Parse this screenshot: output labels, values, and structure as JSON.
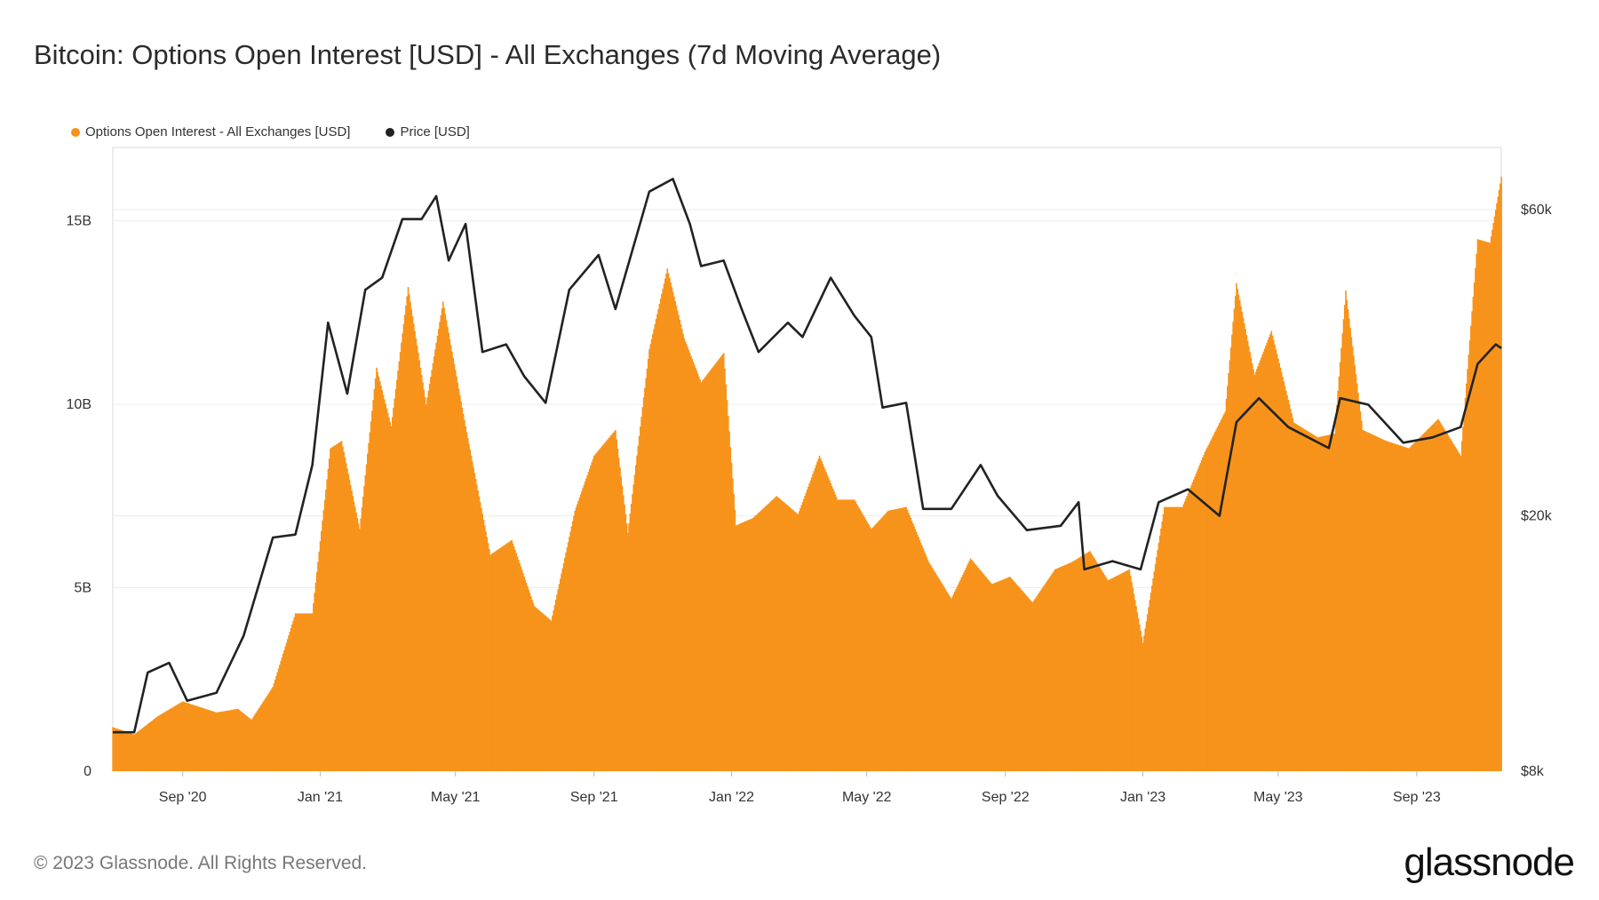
{
  "title": "Bitcoin: Options Open Interest [USD] - All Exchanges (7d Moving Average)",
  "legend": {
    "oi_label": "Options Open Interest - All Exchanges [USD]",
    "price_label": "Price [USD]"
  },
  "footer": "© 2023 Glassnode. All Rights Reserved.",
  "brand": "glassnode",
  "colors": {
    "oi": "#f7931a",
    "price": "#222222",
    "grid": "#ececec",
    "axis": "#d8d8d8"
  },
  "chart_data": {
    "type": "bar+line",
    "title": "Bitcoin: Options Open Interest [USD] - All Exchanges (7d Moving Average)",
    "x_range": [
      "2020-07-01",
      "2023-11-15"
    ],
    "x_ticks": [
      {
        "date": "2020-09-01",
        "label": "Sep '20"
      },
      {
        "date": "2021-01-01",
        "label": "Jan '21"
      },
      {
        "date": "2021-05-01",
        "label": "May '21"
      },
      {
        "date": "2021-09-01",
        "label": "Sep '21"
      },
      {
        "date": "2022-01-01",
        "label": "Jan '22"
      },
      {
        "date": "2022-05-01",
        "label": "May '22"
      },
      {
        "date": "2022-09-01",
        "label": "Sep '22"
      },
      {
        "date": "2023-01-01",
        "label": "Jan '23"
      },
      {
        "date": "2023-05-01",
        "label": "May '23"
      },
      {
        "date": "2023-09-01",
        "label": "Sep '23"
      }
    ],
    "y_left": {
      "min": 0,
      "max": 17,
      "unit": "B USD",
      "ticks": [
        {
          "value": 0,
          "label": "0"
        },
        {
          "value": 5,
          "label": "5B"
        },
        {
          "value": 10,
          "label": "10B"
        },
        {
          "value": 15,
          "label": "15B"
        }
      ]
    },
    "y_right": {
      "scale": "log",
      "min": 8000,
      "max": 75000,
      "ticks": [
        {
          "value": 8000,
          "label": "$8k"
        },
        {
          "value": 20000,
          "label": "$20k"
        },
        {
          "value": 60000,
          "label": "$60k"
        }
      ]
    },
    "series": [
      {
        "name": "Options Open Interest - All Exchanges [USD]",
        "kind": "bar",
        "axis": "left",
        "points": [
          [
            "2020-07-01",
            1.2
          ],
          [
            "2020-07-20",
            1.0
          ],
          [
            "2020-08-10",
            1.5
          ],
          [
            "2020-09-01",
            1.9
          ],
          [
            "2020-10-01",
            1.6
          ],
          [
            "2020-10-20",
            1.7
          ],
          [
            "2020-11-01",
            1.4
          ],
          [
            "2020-11-20",
            2.3
          ],
          [
            "2020-12-10",
            4.3
          ],
          [
            "2020-12-25",
            4.3
          ],
          [
            "2021-01-10",
            8.8
          ],
          [
            "2021-01-20",
            9.0
          ],
          [
            "2021-02-05",
            6.6
          ],
          [
            "2021-02-20",
            11.0
          ],
          [
            "2021-03-05",
            9.4
          ],
          [
            "2021-03-20",
            13.2
          ],
          [
            "2021-04-05",
            10.0
          ],
          [
            "2021-04-20",
            12.8
          ],
          [
            "2021-05-10",
            9.4
          ],
          [
            "2021-06-01",
            5.9
          ],
          [
            "2021-06-20",
            6.3
          ],
          [
            "2021-07-10",
            4.5
          ],
          [
            "2021-07-25",
            4.1
          ],
          [
            "2021-08-15",
            7.1
          ],
          [
            "2021-09-01",
            8.6
          ],
          [
            "2021-09-20",
            9.3
          ],
          [
            "2021-10-01",
            6.5
          ],
          [
            "2021-10-20",
            11.5
          ],
          [
            "2021-11-05",
            13.7
          ],
          [
            "2021-11-20",
            11.8
          ],
          [
            "2021-12-05",
            10.6
          ],
          [
            "2021-12-25",
            11.4
          ],
          [
            "2022-01-05",
            6.7
          ],
          [
            "2022-01-20",
            6.9
          ],
          [
            "2022-02-10",
            7.5
          ],
          [
            "2022-03-01",
            7.0
          ],
          [
            "2022-03-20",
            8.6
          ],
          [
            "2022-04-05",
            7.4
          ],
          [
            "2022-04-20",
            7.4
          ],
          [
            "2022-05-05",
            6.6
          ],
          [
            "2022-05-20",
            7.1
          ],
          [
            "2022-06-05",
            7.2
          ],
          [
            "2022-06-25",
            5.7
          ],
          [
            "2022-07-15",
            4.7
          ],
          [
            "2022-08-01",
            5.8
          ],
          [
            "2022-08-20",
            5.1
          ],
          [
            "2022-09-05",
            5.3
          ],
          [
            "2022-09-25",
            4.6
          ],
          [
            "2022-10-15",
            5.5
          ],
          [
            "2022-10-30",
            5.7
          ],
          [
            "2022-11-15",
            6.0
          ],
          [
            "2022-12-01",
            5.2
          ],
          [
            "2022-12-20",
            5.5
          ],
          [
            "2023-01-01",
            3.5
          ],
          [
            "2023-01-20",
            7.2
          ],
          [
            "2023-02-05",
            7.2
          ],
          [
            "2023-02-25",
            8.7
          ],
          [
            "2023-03-15",
            9.8
          ],
          [
            "2023-03-25",
            13.3
          ],
          [
            "2023-04-10",
            10.8
          ],
          [
            "2023-04-25",
            12.0
          ],
          [
            "2023-05-15",
            9.5
          ],
          [
            "2023-06-05",
            9.1
          ],
          [
            "2023-06-20",
            9.2
          ],
          [
            "2023-06-30",
            13.1
          ],
          [
            "2023-07-15",
            9.3
          ],
          [
            "2023-08-05",
            9.0
          ],
          [
            "2023-08-25",
            8.8
          ],
          [
            "2023-09-20",
            9.6
          ],
          [
            "2023-10-10",
            8.6
          ],
          [
            "2023-10-25",
            14.5
          ],
          [
            "2023-11-05",
            14.4
          ],
          [
            "2023-11-15",
            16.2
          ]
        ]
      },
      {
        "name": "Price [USD]",
        "kind": "line",
        "axis": "right",
        "points": [
          [
            "2020-07-01",
            9200
          ],
          [
            "2020-07-20",
            9200
          ],
          [
            "2020-08-01",
            11400
          ],
          [
            "2020-08-20",
            11800
          ],
          [
            "2020-09-05",
            10300
          ],
          [
            "2020-10-01",
            10600
          ],
          [
            "2020-10-25",
            13000
          ],
          [
            "2020-11-20",
            18500
          ],
          [
            "2020-12-10",
            18700
          ],
          [
            "2020-12-25",
            24000
          ],
          [
            "2021-01-08",
            40000
          ],
          [
            "2021-01-25",
            31000
          ],
          [
            "2021-02-10",
            45000
          ],
          [
            "2021-02-25",
            47000
          ],
          [
            "2021-03-15",
            58000
          ],
          [
            "2021-04-01",
            58000
          ],
          [
            "2021-04-14",
            63000
          ],
          [
            "2021-04-25",
            50000
          ],
          [
            "2021-05-10",
            57000
          ],
          [
            "2021-05-25",
            36000
          ],
          [
            "2021-06-15",
            37000
          ],
          [
            "2021-07-01",
            33000
          ],
          [
            "2021-07-20",
            30000
          ],
          [
            "2021-08-10",
            45000
          ],
          [
            "2021-09-05",
            51000
          ],
          [
            "2021-09-20",
            42000
          ],
          [
            "2021-10-20",
            64000
          ],
          [
            "2021-11-10",
            67000
          ],
          [
            "2021-11-25",
            57000
          ],
          [
            "2021-12-05",
            49000
          ],
          [
            "2021-12-25",
            50000
          ],
          [
            "2022-01-10",
            42000
          ],
          [
            "2022-01-25",
            36000
          ],
          [
            "2022-02-20",
            40000
          ],
          [
            "2022-03-05",
            38000
          ],
          [
            "2022-03-30",
            47000
          ],
          [
            "2022-04-20",
            41000
          ],
          [
            "2022-05-05",
            38000
          ],
          [
            "2022-05-15",
            29500
          ],
          [
            "2022-06-05",
            30000
          ],
          [
            "2022-06-20",
            20500
          ],
          [
            "2022-07-15",
            20500
          ],
          [
            "2022-08-10",
            24000
          ],
          [
            "2022-08-25",
            21500
          ],
          [
            "2022-09-20",
            19000
          ],
          [
            "2022-10-20",
            19300
          ],
          [
            "2022-11-05",
            21000
          ],
          [
            "2022-11-10",
            16500
          ],
          [
            "2022-12-05",
            17000
          ],
          [
            "2022-12-30",
            16500
          ],
          [
            "2023-01-15",
            21000
          ],
          [
            "2023-02-10",
            22000
          ],
          [
            "2023-03-10",
            20000
          ],
          [
            "2023-03-25",
            28000
          ],
          [
            "2023-04-14",
            30500
          ],
          [
            "2023-05-10",
            27500
          ],
          [
            "2023-06-15",
            25500
          ],
          [
            "2023-06-25",
            30500
          ],
          [
            "2023-07-20",
            29800
          ],
          [
            "2023-08-20",
            26000
          ],
          [
            "2023-09-15",
            26500
          ],
          [
            "2023-10-10",
            27500
          ],
          [
            "2023-10-25",
            34500
          ],
          [
            "2023-11-10",
            37000
          ],
          [
            "2023-11-15",
            36500
          ]
        ]
      }
    ]
  }
}
